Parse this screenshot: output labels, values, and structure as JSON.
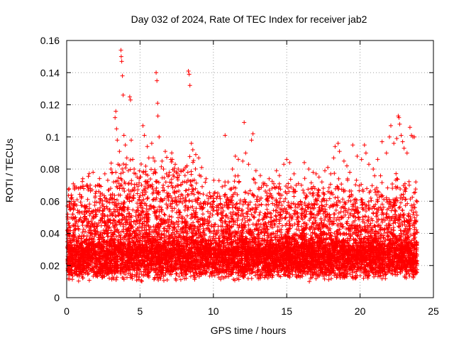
{
  "chart_data": {
    "type": "scatter",
    "title": "Day 032 of 2024, Rate Of TEC Index for receiver jab2",
    "xlabel": "GPS time / hours",
    "ylabel": "ROTI / TECUs",
    "xlim": [
      0,
      25
    ],
    "ylim": [
      0,
      0.16
    ],
    "xticks": [
      0,
      5,
      10,
      15,
      20,
      25
    ],
    "xtick_labels": [
      "0",
      "5",
      "10",
      "15",
      "20",
      "25"
    ],
    "yticks": [
      0,
      0.02,
      0.04,
      0.06,
      0.08,
      0.1,
      0.12,
      0.14,
      0.16
    ],
    "ytick_labels": [
      "0",
      "0.02",
      "0.04",
      "0.06",
      "0.08",
      "0.1",
      "0.12",
      "0.14",
      "0.16"
    ],
    "grid": true,
    "marker": "plus",
    "color": "#ff0000",
    "series": [
      {
        "name": "ROTI",
        "points": [
          [
            0.05,
            0.031
          ],
          [
            0.1,
            0.046
          ],
          [
            0.2,
            0.058
          ],
          [
            0.3,
            0.062
          ],
          [
            0.4,
            0.052
          ],
          [
            0.5,
            0.057
          ],
          [
            0.6,
            0.05
          ],
          [
            0.8,
            0.068
          ],
          [
            1.0,
            0.062
          ],
          [
            1.1,
            0.074
          ],
          [
            1.2,
            0.052
          ],
          [
            1.4,
            0.07
          ],
          [
            1.6,
            0.07
          ],
          [
            1.8,
            0.078
          ],
          [
            2.0,
            0.066
          ],
          [
            2.1,
            0.07
          ],
          [
            2.3,
            0.065
          ],
          [
            2.6,
            0.077
          ],
          [
            2.8,
            0.073
          ],
          [
            3.0,
            0.068
          ],
          [
            3.2,
            0.072
          ],
          [
            3.3,
            0.112
          ],
          [
            3.35,
            0.116
          ],
          [
            3.4,
            0.105
          ],
          [
            3.45,
            0.098
          ],
          [
            3.5,
            0.083
          ],
          [
            3.6,
            0.091
          ],
          [
            3.7,
            0.154
          ],
          [
            3.72,
            0.15
          ],
          [
            3.75,
            0.147
          ],
          [
            3.8,
            0.138
          ],
          [
            3.85,
            0.126
          ],
          [
            3.9,
            0.101
          ],
          [
            4.0,
            0.095
          ],
          [
            4.1,
            0.087
          ],
          [
            4.2,
            0.079
          ],
          [
            4.3,
            0.125
          ],
          [
            4.35,
            0.123
          ],
          [
            4.4,
            0.098
          ],
          [
            4.5,
            0.086
          ],
          [
            4.6,
            0.08
          ],
          [
            4.7,
            0.077
          ],
          [
            4.8,
            0.075
          ],
          [
            5.0,
            0.075
          ],
          [
            5.2,
            0.107
          ],
          [
            5.3,
            0.101
          ],
          [
            5.5,
            0.094
          ],
          [
            5.6,
            0.087
          ],
          [
            5.8,
            0.096
          ],
          [
            5.9,
            0.087
          ],
          [
            6.0,
            0.085
          ],
          [
            6.1,
            0.14
          ],
          [
            6.15,
            0.135
          ],
          [
            6.2,
            0.121
          ],
          [
            6.22,
            0.113
          ],
          [
            6.3,
            0.1
          ],
          [
            6.5,
            0.085
          ],
          [
            6.6,
            0.08
          ],
          [
            6.8,
            0.077
          ],
          [
            7.0,
            0.078
          ],
          [
            7.2,
            0.086
          ],
          [
            7.4,
            0.083
          ],
          [
            7.6,
            0.08
          ],
          [
            7.8,
            0.079
          ],
          [
            8.0,
            0.08
          ],
          [
            8.2,
            0.082
          ],
          [
            8.3,
            0.141
          ],
          [
            8.35,
            0.139
          ],
          [
            8.4,
            0.132
          ],
          [
            8.5,
            0.096
          ],
          [
            8.6,
            0.092
          ],
          [
            8.8,
            0.089
          ],
          [
            9.0,
            0.087
          ],
          [
            9.2,
            0.081
          ],
          [
            9.5,
            0.074
          ],
          [
            9.8,
            0.063
          ],
          [
            10.0,
            0.06
          ],
          [
            10.3,
            0.065
          ],
          [
            10.6,
            0.069
          ],
          [
            10.8,
            0.101
          ],
          [
            11.0,
            0.072
          ],
          [
            11.3,
            0.08
          ],
          [
            11.5,
            0.088
          ],
          [
            11.7,
            0.086
          ],
          [
            12.0,
            0.085
          ],
          [
            12.1,
            0.109
          ],
          [
            12.2,
            0.09
          ],
          [
            12.4,
            0.083
          ],
          [
            12.6,
            0.098
          ],
          [
            12.7,
            0.102
          ],
          [
            12.9,
            0.079
          ],
          [
            13.2,
            0.076
          ],
          [
            13.5,
            0.071
          ],
          [
            13.8,
            0.074
          ],
          [
            14.0,
            0.068
          ],
          [
            14.3,
            0.079
          ],
          [
            14.5,
            0.076
          ],
          [
            14.8,
            0.083
          ],
          [
            15.0,
            0.086
          ],
          [
            15.2,
            0.084
          ],
          [
            15.5,
            0.077
          ],
          [
            15.8,
            0.071
          ],
          [
            16.0,
            0.07
          ],
          [
            16.2,
            0.084
          ],
          [
            16.5,
            0.08
          ],
          [
            16.8,
            0.078
          ],
          [
            17.0,
            0.077
          ],
          [
            17.2,
            0.075
          ],
          [
            17.4,
            0.072
          ],
          [
            17.6,
            0.079
          ],
          [
            17.8,
            0.081
          ],
          [
            18.0,
            0.077
          ],
          [
            18.2,
            0.087
          ],
          [
            18.3,
            0.094
          ],
          [
            18.5,
            0.096
          ],
          [
            18.6,
            0.091
          ],
          [
            18.9,
            0.085
          ],
          [
            19.1,
            0.082
          ],
          [
            19.3,
            0.078
          ],
          [
            19.5,
            0.095
          ],
          [
            19.8,
            0.088
          ],
          [
            20.1,
            0.086
          ],
          [
            20.3,
            0.095
          ],
          [
            20.4,
            0.09
          ],
          [
            20.6,
            0.083
          ],
          [
            20.9,
            0.08
          ],
          [
            21.2,
            0.086
          ],
          [
            21.5,
            0.097
          ],
          [
            21.8,
            0.09
          ],
          [
            22.0,
            0.1
          ],
          [
            22.1,
            0.107
          ],
          [
            22.3,
            0.096
          ],
          [
            22.5,
            0.099
          ],
          [
            22.6,
            0.113
          ],
          [
            22.65,
            0.112
          ],
          [
            22.7,
            0.108
          ],
          [
            22.8,
            0.101
          ],
          [
            22.9,
            0.097
          ],
          [
            23.0,
            0.093
          ],
          [
            23.2,
            0.09
          ],
          [
            23.4,
            0.106
          ],
          [
            23.5,
            0.101
          ],
          [
            23.6,
            0.1
          ],
          [
            23.7,
            0.1
          ],
          [
            23.8,
            0.072
          ]
        ]
      }
    ]
  }
}
